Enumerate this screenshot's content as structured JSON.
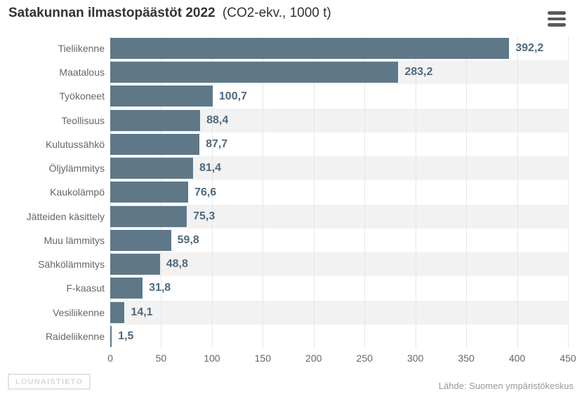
{
  "header": {
    "title": "Satakunnan ilmastopäästöt 2022",
    "subtitle": "(CO2-ekv., 1000 t)",
    "menu_icon": "hamburger-icon"
  },
  "chart_data": {
    "type": "bar",
    "orientation": "horizontal",
    "title": "Satakunnan ilmastopäästöt 2022 (CO2-ekv., 1000 t)",
    "categories": [
      "Tieliikenne",
      "Maatalous",
      "Työkoneet",
      "Teollisuus",
      "Kulutussähkö",
      "Öljylämmitys",
      "Kaukolämpö",
      "Jätteiden käsittely",
      "Muu lämmitys",
      "Sähkölämmitys",
      "F-kaasut",
      "Vesiliikenne",
      "Raideliikenne"
    ],
    "values": [
      392.2,
      283.2,
      100.7,
      88.4,
      87.7,
      81.4,
      76.6,
      75.3,
      59.8,
      48.8,
      31.8,
      14.1,
      1.5
    ],
    "value_labels": [
      "392,2",
      "283,2",
      "100,7",
      "88,4",
      "87,7",
      "81,4",
      "76,6",
      "75,3",
      "59,8",
      "48,8",
      "31,8",
      "14,1",
      "1,5"
    ],
    "xlabel": "",
    "ylabel": "",
    "xlim": [
      0,
      450
    ],
    "x_ticks": [
      0,
      50,
      100,
      150,
      200,
      250,
      300,
      350,
      400,
      450
    ],
    "grid": true,
    "legend": false,
    "band_alternate": true,
    "colors": {
      "bar": "#5f7887",
      "value_label": "#50697d",
      "axis_label": "#666666",
      "gridline": "#e7e7e7",
      "band": "#f2f2f2",
      "title": "#333333"
    }
  },
  "footer": {
    "logo_text": "LOUNAISTIETO",
    "credits": "Lähde: Suomen ympäristökeskus"
  }
}
